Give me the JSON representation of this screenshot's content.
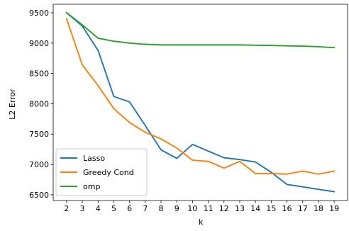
{
  "chart_data": {
    "type": "line",
    "xlabel": "k",
    "ylabel": "L2 Error",
    "x": [
      2,
      3,
      4,
      5,
      6,
      7,
      8,
      9,
      10,
      11,
      12,
      13,
      14,
      15,
      16,
      17,
      18,
      19
    ],
    "xticks": [
      2,
      3,
      4,
      5,
      6,
      7,
      8,
      9,
      10,
      11,
      12,
      13,
      14,
      15,
      16,
      17,
      18,
      19
    ],
    "yticks": [
      6500,
      7000,
      7500,
      8000,
      8500,
      9000,
      9500
    ],
    "xlim": [
      1.15,
      19.85
    ],
    "ylim": [
      6405,
      9640
    ],
    "grid": false,
    "legend_position": "lower-left",
    "series": [
      {
        "name": "Lasso",
        "color": "#1f77b4",
        "values": [
          9500,
          9280,
          8880,
          8120,
          8030,
          7640,
          7240,
          7100,
          7330,
          7220,
          7110,
          7080,
          7040,
          6870,
          6670,
          6630,
          6590,
          6550
        ]
      },
      {
        "name": "Greedy Cond",
        "color": "#ff7f0e",
        "values": [
          9400,
          8640,
          8300,
          7920,
          7690,
          7530,
          7420,
          7270,
          7070,
          7050,
          6940,
          7050,
          6850,
          6850,
          6840,
          6890,
          6840,
          6890
        ]
      },
      {
        "name": "omp",
        "color": "#2ca02c",
        "values": [
          9500,
          9300,
          9080,
          9030,
          9000,
          8980,
          8970,
          8970,
          8970,
          8970,
          8970,
          8970,
          8965,
          8960,
          8955,
          8950,
          8940,
          8925
        ]
      }
    ]
  }
}
